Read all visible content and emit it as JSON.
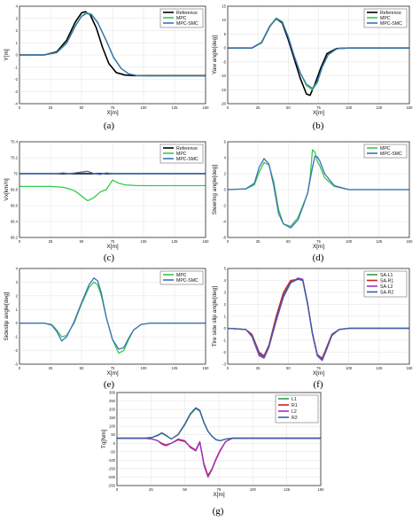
{
  "colors": {
    "Reference": "#000000",
    "MPC": "#33cc4d",
    "MPC-SMC": "#3f6fbf",
    "SA-L1": "#2e9e4f",
    "SA-R1": "#cc2222",
    "SA-L2": "#9933cc",
    "SA-R2": "#3a5fa8",
    "L1": "#2e9e4f",
    "R1": "#cc2222",
    "L2": "#9933cc",
    "R2": "#3a5fa8"
  },
  "chart_data": [
    {
      "id": "a",
      "type": "line",
      "caption": "(a)",
      "xlabel": "X[m]",
      "ylabel": "Y[m]",
      "xlim": [
        0,
        150
      ],
      "ylim": [
        -4,
        4
      ],
      "xticks": [
        0,
        25,
        50,
        75,
        100,
        125,
        150
      ],
      "yticks": [
        -4,
        -3,
        -2,
        -1,
        0,
        1,
        2,
        3,
        4
      ],
      "grid": true,
      "legend_position": "top-right",
      "series": [
        {
          "name": "Reference",
          "x": [
            0,
            20,
            30,
            38,
            45,
            50,
            53,
            57,
            62,
            67,
            72,
            78,
            85,
            92,
            100,
            150
          ],
          "y": [
            0,
            0,
            0.25,
            1.2,
            2.7,
            3.45,
            3.55,
            3.3,
            2.2,
            0.6,
            -0.7,
            -1.45,
            -1.65,
            -1.7,
            -1.7,
            -1.7
          ]
        },
        {
          "name": "MPC",
          "x": [
            0,
            20,
            30,
            38,
            45,
            50,
            54,
            58,
            63,
            70,
            76,
            82,
            88,
            95,
            103,
            150
          ],
          "y": [
            0,
            0,
            0.2,
            1.0,
            2.4,
            3.2,
            3.45,
            3.35,
            2.7,
            1.2,
            -0.2,
            -1.1,
            -1.55,
            -1.7,
            -1.72,
            -1.72
          ]
        },
        {
          "name": "MPC-SMC",
          "x": [
            0,
            20,
            30,
            38,
            45,
            50,
            54,
            58,
            63,
            70,
            76,
            82,
            88,
            95,
            103,
            150
          ],
          "y": [
            0,
            0,
            0.18,
            0.95,
            2.35,
            3.15,
            3.4,
            3.3,
            2.65,
            1.15,
            -0.25,
            -1.12,
            -1.56,
            -1.7,
            -1.72,
            -1.72
          ]
        }
      ]
    },
    {
      "id": "b",
      "type": "line",
      "caption": "(b)",
      "xlabel": "X[m]",
      "ylabel": "Yaw angle[deg]",
      "xlim": [
        0,
        150
      ],
      "ylim": [
        -20,
        15
      ],
      "xticks": [
        0,
        25,
        50,
        75,
        100,
        125,
        150
      ],
      "yticks": [
        -20,
        -15,
        -10,
        -5,
        0,
        5,
        10,
        15
      ],
      "grid": true,
      "legend_position": "top-right",
      "series": [
        {
          "name": "Reference",
          "x": [
            0,
            20,
            28,
            35,
            40,
            45,
            50,
            55,
            60,
            65,
            68,
            72,
            77,
            82,
            90,
            100,
            150
          ],
          "y": [
            0,
            0,
            2,
            8,
            10.5,
            9,
            3,
            -4,
            -11,
            -16.5,
            -17,
            -13,
            -7,
            -2,
            -0.2,
            0,
            0
          ]
        },
        {
          "name": "MPC",
          "x": [
            0,
            20,
            28,
            35,
            40,
            45,
            50,
            55,
            60,
            65,
            70,
            74,
            78,
            83,
            90,
            100,
            150
          ],
          "y": [
            0,
            0,
            2,
            8,
            10.8,
            9.5,
            4,
            -3,
            -9,
            -13.5,
            -15,
            -12.5,
            -7,
            -2.5,
            -0.3,
            0,
            0
          ]
        },
        {
          "name": "MPC-SMC",
          "x": [
            0,
            20,
            28,
            35,
            40,
            45,
            50,
            55,
            60,
            65,
            70,
            74,
            78,
            83,
            90,
            100,
            150
          ],
          "y": [
            0,
            0,
            1.8,
            7.8,
            10.5,
            9.3,
            4,
            -3,
            -9,
            -13,
            -14.5,
            -12,
            -6.8,
            -2.3,
            -0.3,
            0,
            0
          ]
        }
      ]
    },
    {
      "id": "c",
      "type": "line",
      "caption": "(c)",
      "xlabel": "X[m]",
      "ylabel": "Vx[km/h]",
      "xlim": [
        0,
        150
      ],
      "ylim": [
        69.2,
        70.4
      ],
      "xticks": [
        0,
        25,
        50,
        75,
        100,
        125,
        150
      ],
      "yticks": [
        69.2,
        69.4,
        69.6,
        69.8,
        70,
        70.2,
        70.4
      ],
      "grid": true,
      "legend_position": "top-right",
      "series": [
        {
          "name": "Reference",
          "x": [
            0,
            150
          ],
          "y": [
            70,
            70
          ]
        },
        {
          "name": "MPC",
          "x": [
            0,
            25,
            35,
            40,
            45,
            50,
            55,
            60,
            65,
            70,
            75,
            80,
            85,
            95,
            110,
            150
          ],
          "y": [
            69.84,
            69.84,
            69.83,
            69.81,
            69.78,
            69.72,
            69.66,
            69.7,
            69.77,
            69.8,
            69.92,
            69.88,
            69.86,
            69.85,
            69.85,
            69.85
          ]
        },
        {
          "name": "MPC-SMC",
          "x": [
            0,
            30,
            35,
            40,
            45,
            50,
            55,
            60,
            65,
            70,
            75,
            80,
            90,
            150
          ],
          "y": [
            70,
            70,
            70.01,
            70,
            70.01,
            70.02,
            70.03,
            70,
            69.99,
            70.01,
            70,
            70,
            70,
            70
          ]
        }
      ]
    },
    {
      "id": "d",
      "type": "line",
      "caption": "(d)",
      "xlabel": "X[m]",
      "ylabel": "Steering angle[deg]",
      "xlim": [
        0,
        150
      ],
      "ylim": [
        -6,
        6
      ],
      "xticks": [
        0,
        25,
        50,
        75,
        100,
        125,
        150
      ],
      "yticks": [
        -6,
        -4,
        -2,
        0,
        2,
        4,
        6
      ],
      "grid": true,
      "legend_position": "top-right",
      "series": [
        {
          "name": "MPC",
          "x": [
            0,
            15,
            22,
            26,
            30,
            34,
            38,
            42,
            46,
            52,
            58,
            62,
            66,
            68,
            70,
            72,
            74,
            76,
            80,
            88,
            100,
            150
          ],
          "y": [
            0,
            0.1,
            0.6,
            2.2,
            3.4,
            3.1,
            1.0,
            -2.5,
            -4.3,
            -4.6,
            -3.5,
            -2,
            -0.5,
            1.5,
            5.0,
            4.7,
            3.5,
            3.0,
            1.5,
            0.4,
            0,
            0
          ]
        },
        {
          "name": "MPC-SMC",
          "x": [
            0,
            15,
            22,
            26,
            30,
            34,
            38,
            42,
            46,
            52,
            58,
            62,
            66,
            68,
            70,
            72,
            74,
            76,
            80,
            88,
            100,
            150
          ],
          "y": [
            0,
            0.1,
            0.8,
            2.8,
            3.9,
            3.2,
            0.5,
            -3,
            -4.3,
            -4.8,
            -3.8,
            -2.2,
            -0.4,
            1.2,
            2.8,
            4.2,
            4.1,
            3.6,
            2,
            0.5,
            0,
            0
          ]
        }
      ]
    },
    {
      "id": "e",
      "type": "line",
      "caption": "(e)",
      "xlabel": "X[m]",
      "ylabel": "Sideslip angle[deg]",
      "xlim": [
        0,
        150
      ],
      "ylim": [
        -3,
        4
      ],
      "xticks": [
        0,
        25,
        50,
        75,
        100,
        125,
        150
      ],
      "yticks": [
        -3,
        -2,
        -1,
        0,
        1,
        2,
        3,
        4
      ],
      "grid": true,
      "legend_position": "top-right",
      "series": [
        {
          "name": "MPC",
          "x": [
            0,
            20,
            26,
            30,
            34,
            38,
            44,
            50,
            56,
            60,
            63,
            66,
            70,
            75,
            80,
            84,
            88,
            92,
            98,
            105,
            150
          ],
          "y": [
            0,
            0,
            -0.1,
            -0.5,
            -1.0,
            -0.9,
            0,
            1.4,
            2.6,
            3.0,
            2.8,
            2.0,
            0.4,
            -1.2,
            -2.2,
            -2.0,
            -1.2,
            -0.5,
            -0.1,
            0,
            0
          ]
        },
        {
          "name": "MPC-SMC",
          "x": [
            0,
            20,
            26,
            30,
            34,
            38,
            44,
            50,
            56,
            60,
            63,
            66,
            70,
            75,
            80,
            84,
            88,
            92,
            98,
            105,
            150
          ],
          "y": [
            0,
            0,
            -0.15,
            -0.6,
            -1.3,
            -1.0,
            0.1,
            1.5,
            2.8,
            3.3,
            3.1,
            2.2,
            0.4,
            -1.2,
            -1.9,
            -1.8,
            -1.1,
            -0.5,
            -0.1,
            0,
            0
          ]
        }
      ]
    },
    {
      "id": "f",
      "type": "line",
      "caption": "(f)",
      "xlabel": "X[m]",
      "ylabel": "Tire side slip angle[deg]",
      "xlim": [
        0,
        150
      ],
      "ylim": [
        -3,
        5
      ],
      "xticks": [
        0,
        25,
        50,
        75,
        100,
        125,
        150
      ],
      "yticks": [
        -3,
        -2,
        -1,
        0,
        1,
        2,
        3,
        4,
        5
      ],
      "grid": true,
      "legend_position": "top-right",
      "series": [
        {
          "name": "SA-L1",
          "x": [
            0,
            15,
            20,
            26,
            30,
            34,
            40,
            46,
            52,
            58,
            62,
            66,
            70,
            74,
            78,
            82,
            86,
            92,
            100,
            150
          ],
          "y": [
            0,
            -0.1,
            -0.6,
            -2.2,
            -2.4,
            -1.5,
            0.8,
            2.8,
            3.9,
            4.1,
            4.0,
            2.0,
            -0.5,
            -2.3,
            -2.6,
            -1.6,
            -0.6,
            -0.1,
            0,
            0
          ]
        },
        {
          "name": "SA-R1",
          "x": [
            0,
            15,
            20,
            26,
            30,
            34,
            40,
            46,
            52,
            58,
            62,
            66,
            70,
            74,
            78,
            82,
            86,
            92,
            100,
            150
          ],
          "y": [
            0,
            -0.1,
            -0.5,
            -2.0,
            -2.3,
            -1.4,
            1.0,
            3.0,
            4.0,
            4.1,
            4.0,
            2.0,
            -0.4,
            -2.2,
            -2.5,
            -1.5,
            -0.5,
            -0.1,
            0,
            0
          ]
        },
        {
          "name": "SA-L2",
          "x": [
            0,
            15,
            20,
            26,
            30,
            34,
            40,
            46,
            52,
            58,
            62,
            66,
            70,
            74,
            78,
            82,
            86,
            92,
            100,
            150
          ],
          "y": [
            0,
            -0.1,
            -0.7,
            -2.3,
            -2.5,
            -1.6,
            0.6,
            2.6,
            3.8,
            4.2,
            4.1,
            2.1,
            -0.5,
            -2.3,
            -2.7,
            -1.7,
            -0.6,
            -0.1,
            0,
            0
          ]
        },
        {
          "name": "SA-R2",
          "x": [
            0,
            15,
            20,
            26,
            30,
            34,
            40,
            46,
            52,
            58,
            62,
            66,
            70,
            74,
            78,
            82,
            86,
            92,
            100,
            150
          ],
          "y": [
            0,
            -0.1,
            -0.6,
            -2.1,
            -2.4,
            -1.5,
            0.7,
            2.7,
            3.8,
            4.1,
            4.0,
            2.0,
            -0.5,
            -2.2,
            -2.6,
            -1.6,
            -0.6,
            -0.1,
            0,
            0
          ]
        }
      ]
    },
    {
      "id": "g",
      "type": "line",
      "caption": "(g)",
      "xlabel": "X[m]",
      "ylabel": "Tq[Nm]",
      "xlim": [
        0,
        150
      ],
      "ylim": [
        -250,
        300
      ],
      "xticks": [
        0,
        25,
        50,
        75,
        100,
        125,
        150
      ],
      "yticks": [
        -250,
        -200,
        -150,
        -100,
        -50,
        0,
        50,
        100,
        150,
        200,
        250,
        300
      ],
      "grid": true,
      "legend_position": "top-right",
      "series": [
        {
          "name": "L1",
          "x": [
            0,
            20,
            26,
            30,
            33,
            36,
            40,
            45,
            50,
            54,
            58,
            61,
            64,
            67,
            70,
            73,
            76,
            80,
            85,
            90,
            95,
            150
          ],
          "y": [
            30,
            30,
            35,
            45,
            60,
            45,
            25,
            50,
            110,
            170,
            205,
            190,
            120,
            70,
            40,
            20,
            15,
            25,
            30,
            30,
            30,
            30
          ]
        },
        {
          "name": "R1",
          "x": [
            0,
            20,
            26,
            30,
            33,
            36,
            40,
            45,
            50,
            54,
            58,
            61,
            64,
            67,
            70,
            73,
            76,
            80,
            85,
            90,
            95,
            150
          ],
          "y": [
            30,
            30,
            25,
            15,
            0,
            -10,
            0,
            20,
            10,
            -20,
            -40,
            10,
            -120,
            -190,
            -150,
            -90,
            -40,
            10,
            30,
            30,
            30,
            30
          ]
        },
        {
          "name": "L2",
          "x": [
            0,
            20,
            26,
            30,
            33,
            36,
            40,
            45,
            50,
            54,
            58,
            61,
            64,
            67,
            70,
            73,
            76,
            80,
            85,
            90,
            95,
            150
          ],
          "y": [
            30,
            30,
            25,
            15,
            -5,
            -15,
            0,
            25,
            15,
            -25,
            -45,
            5,
            -130,
            -200,
            -155,
            -95,
            -45,
            10,
            30,
            30,
            30,
            30
          ]
        },
        {
          "name": "R2",
          "x": [
            0,
            20,
            26,
            30,
            33,
            36,
            40,
            45,
            50,
            54,
            58,
            61,
            64,
            67,
            70,
            73,
            76,
            80,
            85,
            90,
            95,
            150
          ],
          "y": [
            30,
            30,
            35,
            48,
            62,
            48,
            25,
            52,
            115,
            175,
            210,
            195,
            125,
            72,
            42,
            22,
            15,
            25,
            30,
            30,
            30,
            30
          ]
        }
      ]
    }
  ]
}
